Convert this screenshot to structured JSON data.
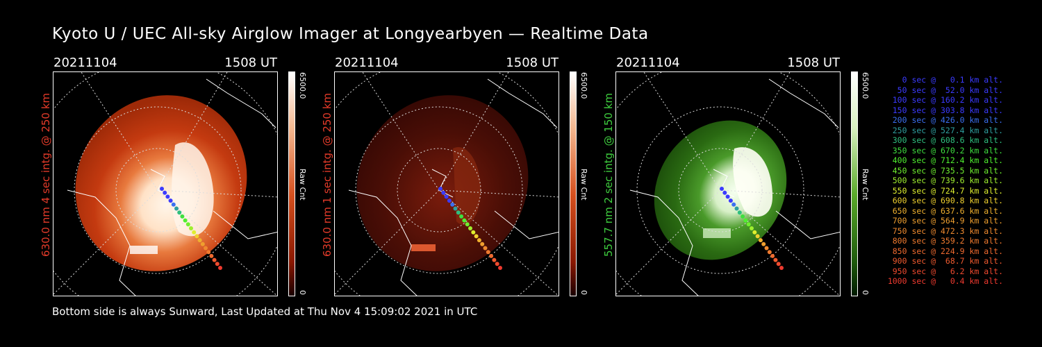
{
  "header": {
    "title": "Kyoto U / UEC All-sky Airglow Imager at Longyearbyen — Realtime Data"
  },
  "footer": {
    "text": "Bottom side is always Sunward, Last Updated at Thu Nov  4 15:09:02 2021 in UTC"
  },
  "panels": [
    {
      "date": "20211104",
      "time": "1508 UT",
      "label": "630.0 nm 4 sec intg. @ 250 km",
      "label_color": "#e53b2a",
      "cbar_max": "6500.0",
      "cbar_min": "0",
      "cbar_unit": "Raw Cnt",
      "palette": "red"
    },
    {
      "date": "20211104",
      "time": "1508 UT",
      "label": "630.0 nm 1 sec intg. @ 250 km",
      "label_color": "#e53b2a",
      "cbar_max": "6500.0",
      "cbar_min": "0",
      "cbar_unit": "Raw Cnt",
      "palette": "red-dim"
    },
    {
      "date": "20211104",
      "time": "1508 UT",
      "label": "557.7 nm 2 sec intg. @ 150 km",
      "label_color": "#3fcf3f",
      "cbar_max": "6500.0",
      "cbar_min": "0",
      "cbar_unit": "Raw Cnt",
      "palette": "green"
    }
  ],
  "trajectory_legend": [
    {
      "text": "0 sec @   0.1 km alt.",
      "color": "#3b3bff"
    },
    {
      "text": "50 sec @  52.0 km alt.",
      "color": "#3b3bff"
    },
    {
      "text": "100 sec @ 160.2 km alt.",
      "color": "#3b3bff"
    },
    {
      "text": "150 sec @ 303.8 km alt.",
      "color": "#3b3bff"
    },
    {
      "text": "200 sec @ 426.0 km alt.",
      "color": "#3b6ff0"
    },
    {
      "text": "250 sec @ 527.4 km alt.",
      "color": "#2f9f9f"
    },
    {
      "text": "300 sec @ 608.6 km alt.",
      "color": "#2fbf7f"
    },
    {
      "text": "350 sec @ 670.2 km alt.",
      "color": "#3fdf3f"
    },
    {
      "text": "400 sec @ 712.4 km alt.",
      "color": "#4fef2f"
    },
    {
      "text": "450 sec @ 735.5 km alt.",
      "color": "#6fef2f"
    },
    {
      "text": "500 sec @ 739.6 km alt.",
      "color": "#9fef2f"
    },
    {
      "text": "550 sec @ 724.7 km alt.",
      "color": "#dfef2f"
    },
    {
      "text": "600 sec @ 690.8 km alt.",
      "color": "#efd02f"
    },
    {
      "text": "650 sec @ 637.6 km alt.",
      "color": "#efb02f"
    },
    {
      "text": "700 sec @ 564.9 km alt.",
      "color": "#ef9f2f"
    },
    {
      "text": "750 sec @ 472.3 km alt.",
      "color": "#ef8a2f"
    },
    {
      "text": "800 sec @ 359.2 km alt.",
      "color": "#ef7a2f"
    },
    {
      "text": "850 sec @ 224.9 km alt.",
      "color": "#ef6a2f"
    },
    {
      "text": "900 sec @  68.7 km alt.",
      "color": "#ef5a2f"
    },
    {
      "text": "950 sec @   6.2 km alt.",
      "color": "#ef4a2f"
    },
    {
      "text": "1000 sec @   0.4 km alt.",
      "color": "#ef3a2f"
    }
  ]
}
